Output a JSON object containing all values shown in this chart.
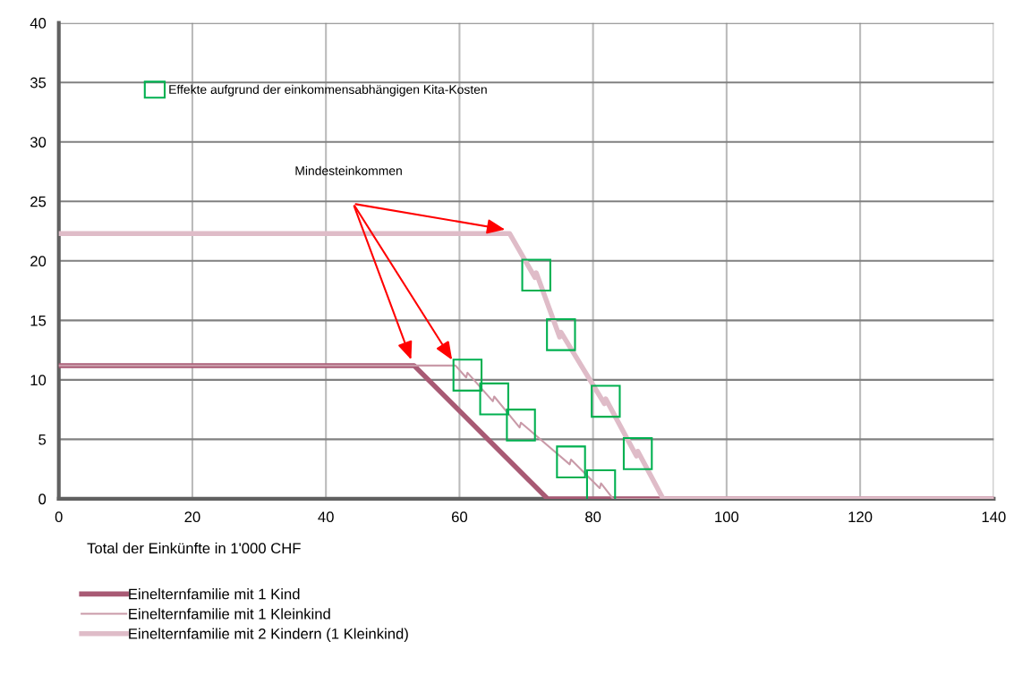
{
  "chart_data": {
    "type": "line",
    "xlabel": "Total der Einkünfte in 1'000 CHF",
    "xlim": [
      0,
      140
    ],
    "xticks": [
      0,
      20,
      40,
      60,
      80,
      100,
      120,
      140
    ],
    "ylim": [
      0,
      40
    ],
    "yticks": [
      0,
      5,
      10,
      15,
      20,
      25,
      30,
      35,
      40
    ],
    "grid": true,
    "legend": "bottom",
    "marker": "none",
    "line_style": "solid",
    "series": [
      {
        "name": "Einelternfamilie mit 1 Kind",
        "color": "#a85a74",
        "x": [
          0,
          53.2,
          73.2,
          140
        ],
        "values": [
          11.2,
          11.2,
          0,
          0
        ]
      },
      {
        "name": "Einelternfamilie mit 1 Kleinkind",
        "color": "#c99aa8",
        "x": [
          0,
          59.4,
          61.0,
          61.2,
          65.0,
          65.2,
          69.0,
          69.2,
          76.5,
          76.7,
          81.0,
          81.2,
          83.0,
          140
        ],
        "values": [
          11.2,
          11.2,
          10.2,
          10.6,
          8.2,
          8.6,
          6.0,
          6.4,
          2.9,
          3.3,
          0.9,
          1.3,
          0,
          0
        ]
      },
      {
        "name": "Einelternfamilie mit 2 Kindern (1 Kleinkind)",
        "color": "#dfbcc8",
        "x": [
          0,
          67.5,
          71.3,
          71.5,
          75.0,
          75.2,
          81.7,
          81.9,
          86.5,
          86.7,
          90.5,
          140
        ],
        "values": [
          22.3,
          22.3,
          18.6,
          19.0,
          13.6,
          14.0,
          8.0,
          8.4,
          3.6,
          4.0,
          0,
          0
        ]
      }
    ],
    "annotations": [
      "Mindesteinkommen",
      "Effekte aufgrund der einkommensabhängigen Kita-Kosten"
    ]
  }
}
